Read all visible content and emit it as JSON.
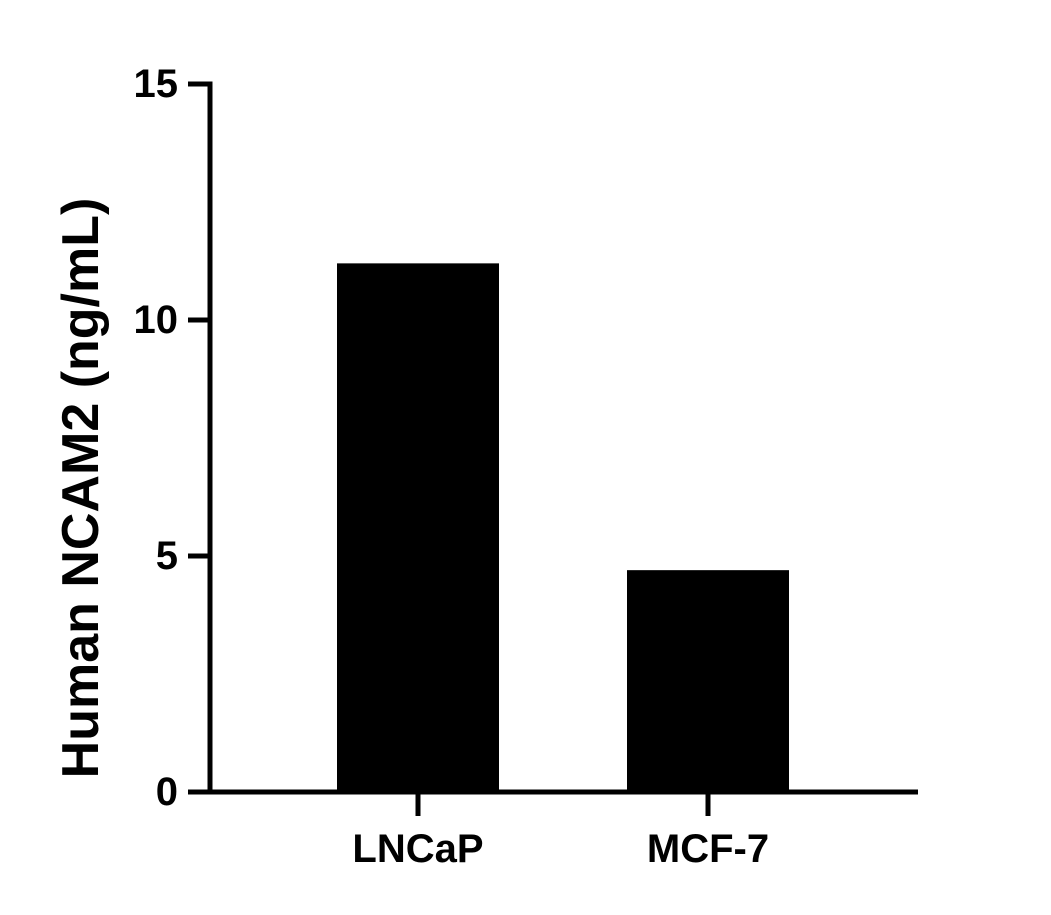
{
  "chart_data": {
    "type": "bar",
    "title": "",
    "xlabel": "",
    "ylabel": "Human NCAM2 (ng/mL)",
    "categories": [
      "LNCaP",
      "MCF-7"
    ],
    "values": [
      11.2,
      4.7
    ],
    "ylim": [
      0,
      15
    ],
    "yticks": [
      0,
      5,
      10,
      15
    ],
    "ytick_labels": [
      "0",
      "5",
      "10",
      "15"
    ],
    "grid": false,
    "legend": "none",
    "bar_color": "#000000",
    "axis_color": "#000000"
  }
}
